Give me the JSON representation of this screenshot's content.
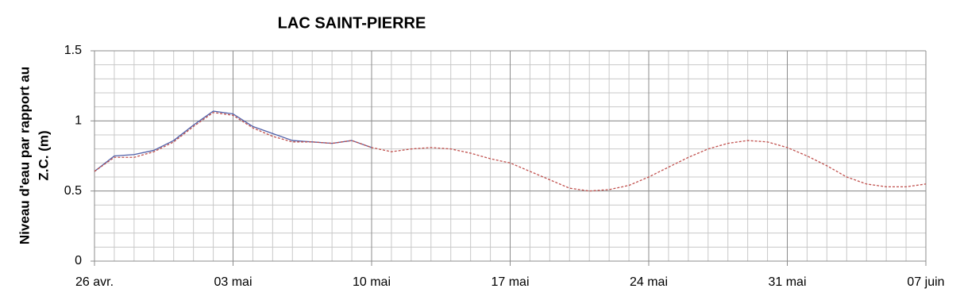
{
  "chart_data": {
    "type": "line",
    "title": "LAC SAINT-PIERRE",
    "y_label": [
      "Niveau d'eau par rapport au",
      "Z.C. (m)"
    ],
    "x": [
      0,
      1,
      2,
      3,
      4,
      5,
      6,
      7,
      8,
      9,
      10,
      11,
      12,
      13,
      14,
      15,
      16,
      17,
      18,
      19,
      20,
      21,
      22,
      23,
      24,
      25,
      26,
      27,
      28,
      29,
      30,
      31,
      32,
      33,
      34,
      35,
      36,
      37,
      38,
      39,
      40,
      41,
      42
    ],
    "xlim": [
      0,
      42
    ],
    "xticks": [
      {
        "value": 0,
        "label": "26 avr."
      },
      {
        "value": 7,
        "label": "03 mai"
      },
      {
        "value": 14,
        "label": "10 mai"
      },
      {
        "value": 21,
        "label": "17 mai"
      },
      {
        "value": 28,
        "label": "24 mai"
      },
      {
        "value": 35,
        "label": "31 mai"
      },
      {
        "value": 42,
        "label": "07 juin"
      }
    ],
    "ylim": [
      0,
      1.5
    ],
    "yticks": [
      0,
      0.5,
      1,
      1.5
    ],
    "grid": true,
    "minor_grid": {
      "x": 1,
      "y": 0.1
    },
    "series": [
      {
        "color": "#4f5fa8",
        "dashed": false,
        "values": [
          0.64,
          0.75,
          0.76,
          0.79,
          0.86,
          0.97,
          1.07,
          1.05,
          0.96,
          0.91,
          0.86,
          0.85,
          0.84,
          0.86,
          0.81,
          null,
          null,
          null,
          null,
          null,
          null,
          null,
          null,
          null,
          null,
          null,
          null,
          null,
          null,
          null,
          null,
          null,
          null,
          null,
          null,
          null,
          null,
          null,
          null,
          null,
          null,
          null,
          null
        ]
      },
      {
        "color": "#c0504d",
        "dashed": true,
        "values": [
          0.64,
          0.74,
          0.74,
          0.78,
          0.85,
          0.96,
          1.06,
          1.04,
          0.95,
          0.89,
          0.85,
          0.85,
          0.84,
          0.86,
          0.81,
          0.78,
          0.8,
          0.81,
          0.8,
          0.77,
          0.73,
          0.7,
          0.64,
          0.58,
          0.52,
          0.5,
          0.51,
          0.54,
          0.6,
          0.67,
          0.74,
          0.8,
          0.84,
          0.86,
          0.85,
          0.81,
          0.75,
          0.68,
          0.6,
          0.55,
          0.53,
          0.53,
          0.55
        ]
      }
    ]
  }
}
